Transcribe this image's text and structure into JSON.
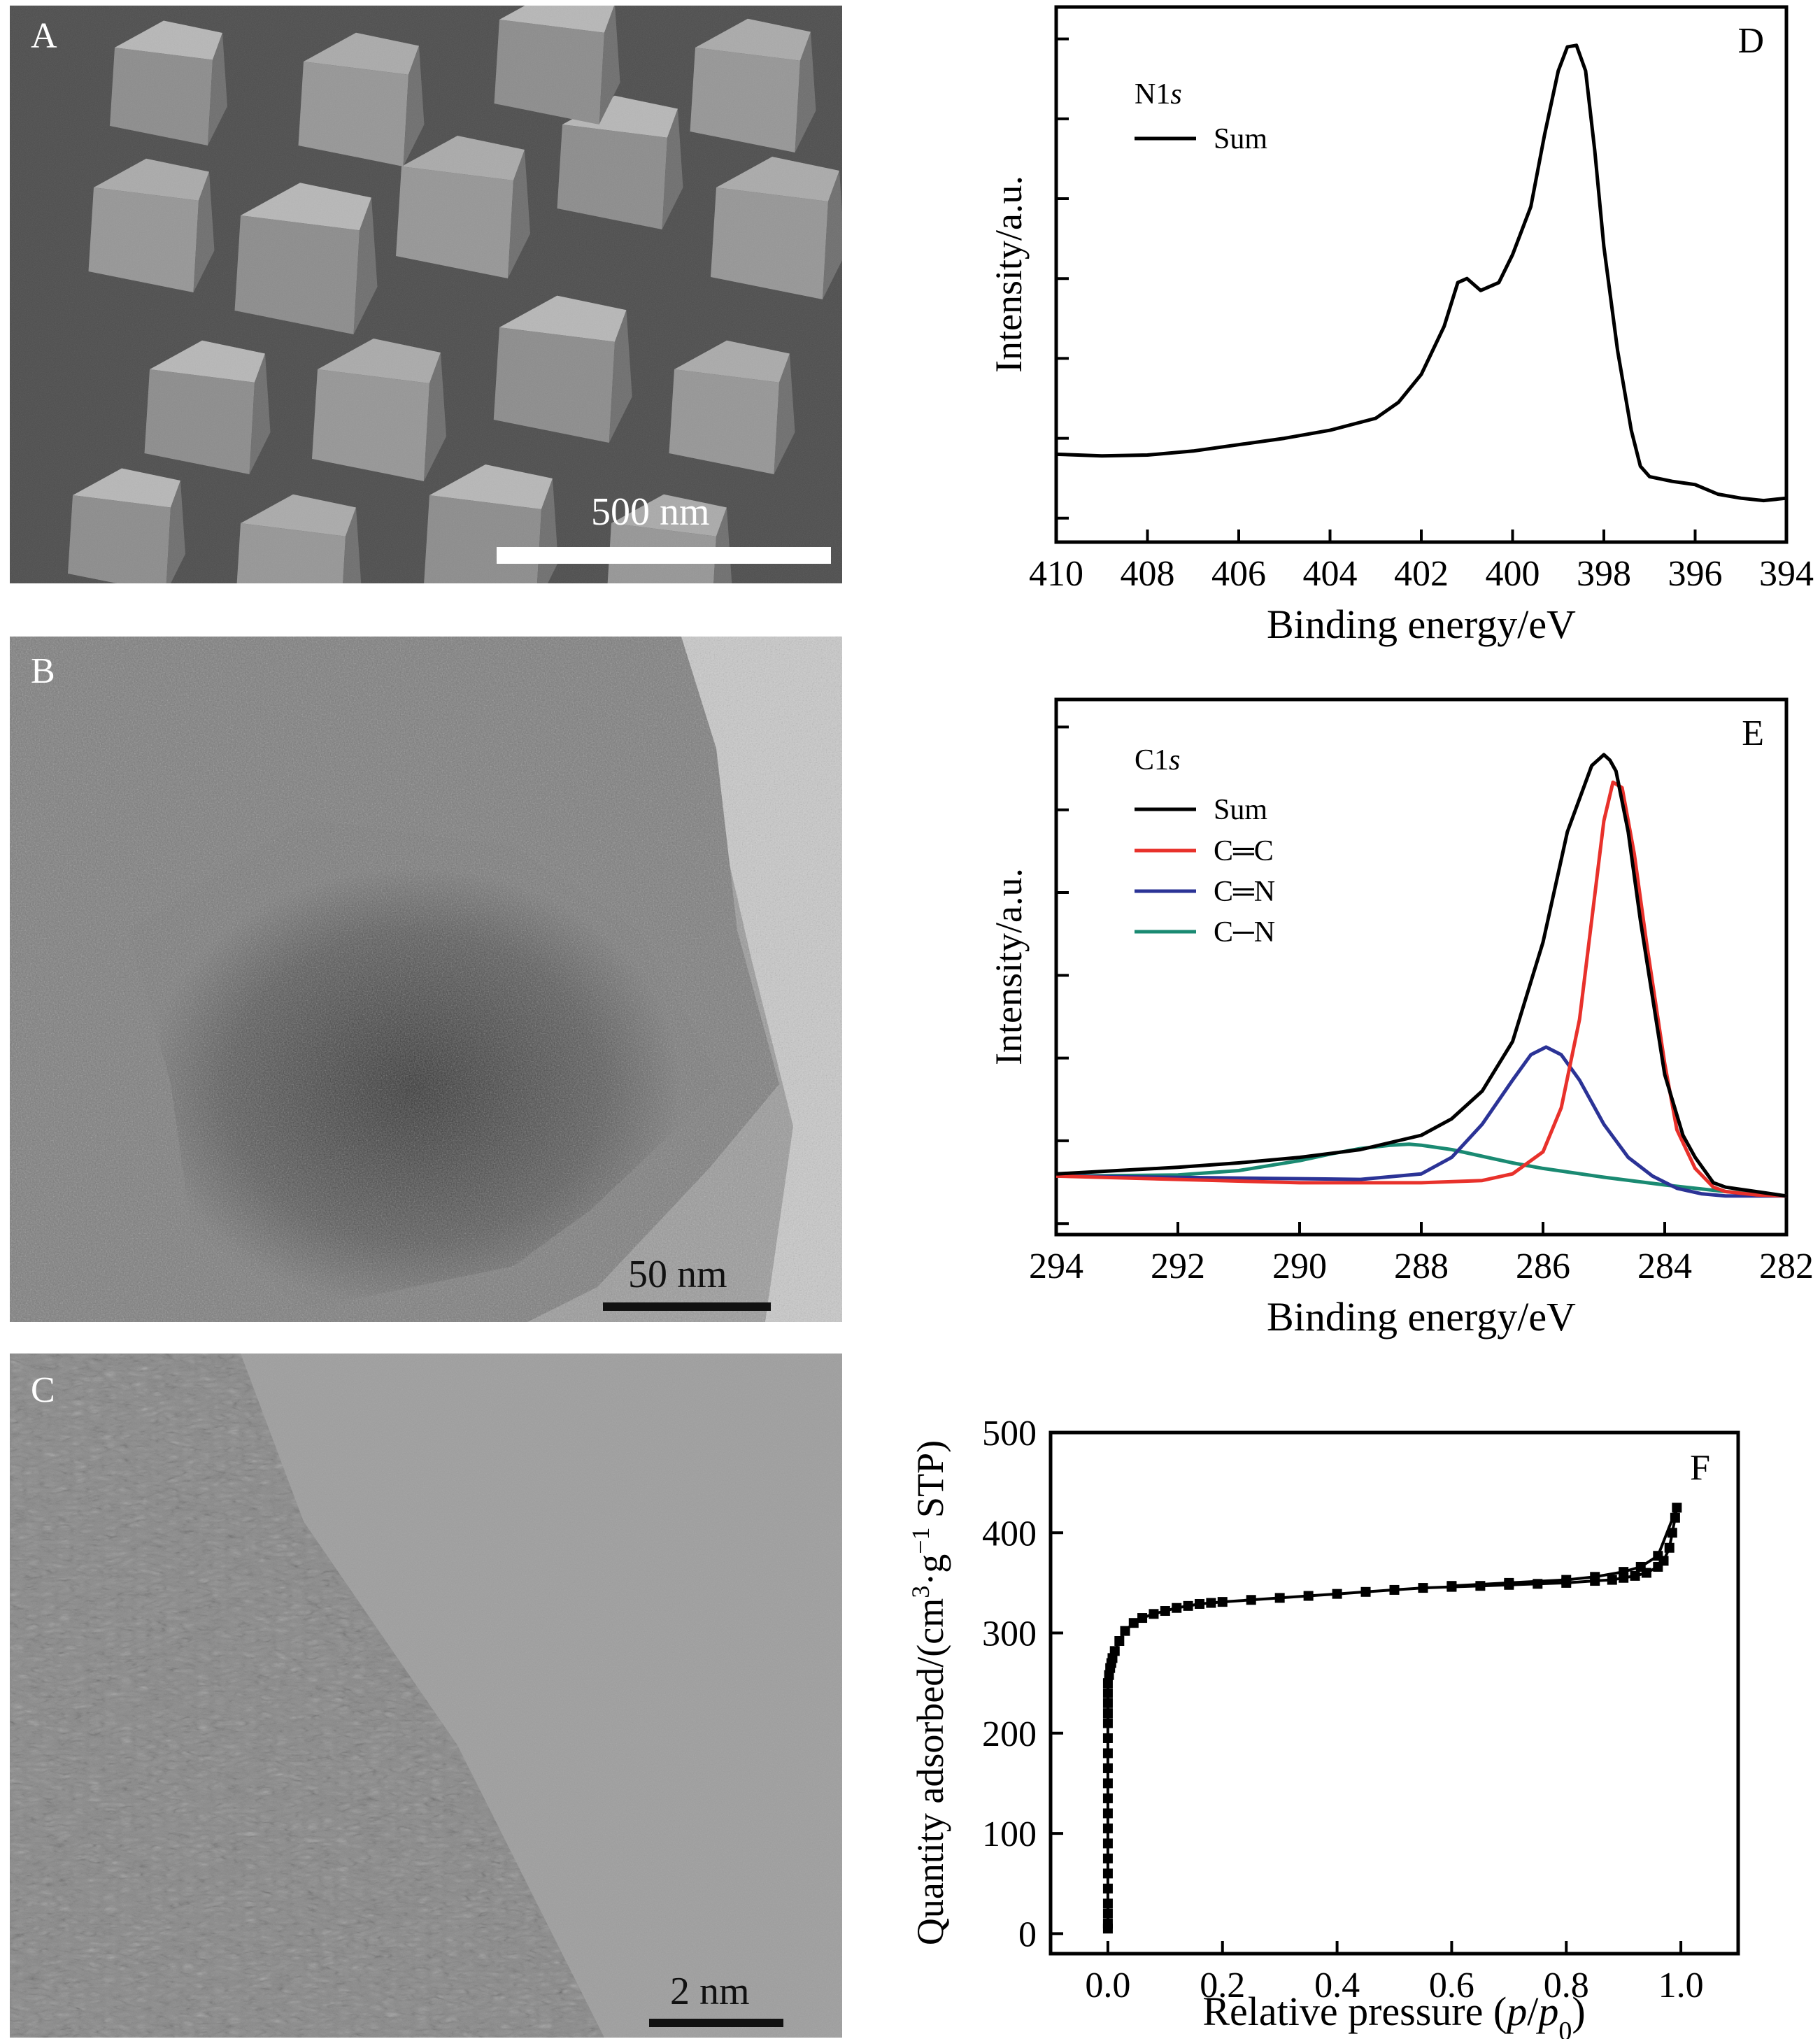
{
  "panels": {
    "A": {
      "label": "A",
      "scale_bar": "500 nm"
    },
    "B": {
      "label": "B",
      "scale_bar": "50 nm"
    },
    "C": {
      "label": "C",
      "scale_bar": "2 nm"
    }
  },
  "colors": {
    "sum": "#000000",
    "cc": "#e8312b",
    "cn_double": "#2b3396",
    "cn_single": "#1a8a72"
  },
  "chart_data": [
    {
      "panel": "D",
      "type": "line",
      "label": "D",
      "legend_title_main": "N1",
      "legend_title_ital": "s",
      "xlabel": "Binding energy/eV",
      "ylabel": "Intensity/a.u.",
      "xlim": [
        410,
        394
      ],
      "x_reversed": true,
      "xticks": [
        "410",
        "408",
        "406",
        "404",
        "402",
        "400",
        "398",
        "396",
        "394"
      ],
      "y_tick_labels": false,
      "series": [
        {
          "name": "Sum",
          "color": "#000000",
          "x": [
            410,
            409,
            408,
            407,
            406,
            405,
            404,
            403,
            402.5,
            402,
            401.5,
            401.2,
            401.0,
            400.7,
            400.3,
            400.0,
            399.6,
            399.3,
            399.0,
            398.8,
            398.6,
            398.4,
            398.2,
            398.0,
            397.7,
            397.4,
            397.2,
            397.0,
            396.5,
            396.0,
            395.5,
            395.0,
            394.5,
            394
          ],
          "y": [
            0.8,
            0.78,
            0.79,
            0.84,
            0.92,
            1.0,
            1.1,
            1.25,
            1.45,
            1.8,
            2.4,
            2.95,
            3.0,
            2.85,
            2.95,
            3.3,
            3.9,
            4.8,
            5.6,
            5.9,
            5.92,
            5.6,
            4.6,
            3.4,
            2.1,
            1.1,
            0.65,
            0.52,
            0.46,
            0.42,
            0.3,
            0.25,
            0.22,
            0.25
          ]
        }
      ]
    },
    {
      "panel": "E",
      "type": "line",
      "label": "E",
      "legend_title_main": "C1",
      "legend_title_ital": "s",
      "xlabel": "Binding energy/eV",
      "ylabel": "Intensity/a.u.",
      "xlim": [
        294,
        282
      ],
      "x_reversed": true,
      "xticks": [
        "294",
        "292",
        "290",
        "288",
        "286",
        "284",
        "282"
      ],
      "y_tick_labels": false,
      "series": [
        {
          "name": "Sum",
          "color": "#000000",
          "x": [
            294,
            293,
            292,
            291,
            290,
            289,
            288,
            287.5,
            287,
            286.5,
            286,
            285.6,
            285.2,
            285.0,
            284.9,
            284.8,
            284.6,
            284.4,
            284.0,
            283.7,
            283.5,
            283.2,
            283,
            282.5,
            282
          ],
          "y": [
            0.2,
            0.23,
            0.26,
            0.3,
            0.35,
            0.42,
            0.55,
            0.7,
            0.95,
            1.4,
            2.3,
            3.3,
            3.9,
            4.0,
            3.95,
            3.85,
            3.3,
            2.5,
            1.1,
            0.55,
            0.35,
            0.12,
            0.08,
            0.04,
            0.0
          ]
        },
        {
          "name": "C═C",
          "color": "#e8312b",
          "x": [
            294,
            290,
            288,
            287,
            286.5,
            286,
            285.7,
            285.4,
            285.2,
            285.0,
            284.85,
            284.7,
            284.5,
            284.3,
            284.0,
            283.8,
            283.5,
            283.2,
            283,
            282.5,
            282
          ],
          "y": [
            0.18,
            0.12,
            0.12,
            0.14,
            0.2,
            0.4,
            0.8,
            1.6,
            2.5,
            3.4,
            3.75,
            3.7,
            3.1,
            2.3,
            1.2,
            0.6,
            0.25,
            0.08,
            0.04,
            0.01,
            0.0
          ]
        },
        {
          "name": "C═N",
          "color": "#2b3396",
          "x": [
            294,
            289,
            288,
            287.5,
            287,
            286.5,
            286.2,
            285.95,
            285.7,
            285.4,
            285.0,
            284.6,
            284.2,
            283.8,
            283.4,
            283,
            282.5,
            282
          ],
          "y": [
            0.18,
            0.15,
            0.2,
            0.35,
            0.65,
            1.05,
            1.28,
            1.35,
            1.28,
            1.05,
            0.65,
            0.35,
            0.18,
            0.07,
            0.02,
            0.0,
            0.0,
            0.0
          ]
        },
        {
          "name": "C─N",
          "color": "#1a8a72",
          "x": [
            294,
            292,
            291,
            290,
            289.5,
            289,
            288.5,
            288.2,
            288,
            287.5,
            287,
            286.5,
            286,
            285,
            284,
            283,
            282
          ],
          "y": [
            0.18,
            0.19,
            0.23,
            0.32,
            0.38,
            0.43,
            0.46,
            0.47,
            0.46,
            0.42,
            0.36,
            0.3,
            0.25,
            0.17,
            0.1,
            0.04,
            0.0
          ]
        }
      ]
    },
    {
      "panel": "F",
      "type": "scatter",
      "label": "F",
      "xlabel_pre": "Relative pressure (",
      "xlabel_p": "p",
      "xlabel_slash": "/",
      "xlabel_p0": "p",
      "xlabel_sub0": "0",
      "xlabel_post": ")",
      "ylabel_pre": "Quantity adsorbed/(cm",
      "ylabel_sup3": "3",
      "ylabel_mid": "·g",
      "ylabel_supm1": "−1",
      "ylabel_post": " STP)",
      "xlim": [
        -0.1,
        1.1
      ],
      "ylim": [
        -20,
        500
      ],
      "xticks": [
        "0.0",
        "0.2",
        "0.4",
        "0.6",
        "0.8",
        "1.0"
      ],
      "yticks": [
        "0",
        "100",
        "200",
        "300",
        "400",
        "500"
      ],
      "series": [
        {
          "name": "",
          "color": "#000000",
          "x": [
            0.0,
            0.0,
            0.0,
            0.0,
            0.0,
            0.0,
            0.0,
            0.0,
            0.0,
            0.0,
            0.0,
            0.0,
            0.0,
            0.0,
            0.0,
            0.0,
            0.0,
            0.0,
            0.0,
            0.0,
            0.002,
            0.004,
            0.006,
            0.008,
            0.012,
            0.02,
            0.03,
            0.045,
            0.06,
            0.08,
            0.1,
            0.12,
            0.14,
            0.16,
            0.18,
            0.2,
            0.25,
            0.3,
            0.35,
            0.4,
            0.45,
            0.5,
            0.55,
            0.6,
            0.65,
            0.7,
            0.75,
            0.8,
            0.85,
            0.88,
            0.9,
            0.92,
            0.94,
            0.96,
            0.97,
            0.98,
            0.985,
            0.99,
            0.993,
            0.96,
            0.93,
            0.9,
            0.85,
            0.8,
            0.7,
            0.6
          ],
          "y": [
            5,
            10,
            20,
            30,
            45,
            60,
            75,
            90,
            105,
            120,
            135,
            150,
            165,
            180,
            195,
            210,
            220,
            230,
            240,
            250,
            258,
            265,
            270,
            275,
            282,
            292,
            302,
            310,
            315,
            319,
            322,
            325,
            327,
            329,
            330,
            331,
            333,
            335,
            337,
            339,
            341,
            343,
            345,
            346,
            347,
            348,
            349,
            350,
            352,
            353,
            355,
            357,
            360,
            366,
            372,
            385,
            400,
            415,
            425,
            377,
            366,
            361,
            356,
            353,
            350,
            347
          ]
        }
      ]
    }
  ]
}
